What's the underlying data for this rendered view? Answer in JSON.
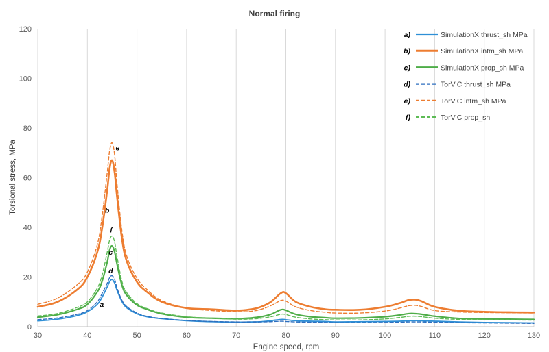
{
  "chart_data": {
    "type": "line",
    "title": "Normal firing",
    "xlabel": "Engine speed, rpm",
    "ylabel": "Torsional stress, MPa",
    "xlim": [
      30,
      130
    ],
    "ylim": [
      0,
      120
    ],
    "xticks": [
      30,
      40,
      50,
      60,
      70,
      80,
      90,
      100,
      110,
      120,
      130
    ],
    "yticks": [
      0,
      20,
      40,
      60,
      80,
      100,
      120
    ],
    "grid": "vertical",
    "legend_position": "top-right",
    "x": [
      30,
      34,
      38,
      40,
      42,
      43,
      44,
      44.5,
      45,
      45.5,
      46,
      47,
      48,
      50,
      52,
      55,
      60,
      65,
      70,
      73,
      75,
      77,
      79,
      80,
      82,
      85,
      88,
      90,
      95,
      100,
      103,
      105,
      107,
      110,
      115,
      120,
      125,
      130
    ],
    "series": [
      {
        "letter": "a)",
        "name": "SimulationX thrust_sh MPa",
        "color": "#2E8FD6",
        "dash": "solid",
        "width": 1.8,
        "values": [
          2.3,
          3.0,
          4.5,
          6.0,
          9.0,
          12.0,
          16.0,
          18.2,
          19.0,
          17.5,
          14.5,
          10.0,
          7.5,
          5.2,
          4.0,
          3.2,
          2.4,
          2.0,
          1.8,
          1.9,
          2.0,
          2.4,
          2.9,
          2.8,
          2.4,
          2.2,
          2.1,
          1.9,
          2.0,
          2.1,
          2.2,
          2.4,
          2.4,
          2.2,
          1.9,
          1.7,
          1.6,
          1.5
        ]
      },
      {
        "letter": "b)",
        "name": "SimulationX intm_sh MPa",
        "color": "#ED7D31",
        "dash": "solid",
        "width": 2.6,
        "values": [
          8.0,
          10.0,
          15.0,
          20.0,
          30.0,
          40.0,
          55.0,
          64.0,
          67.0,
          62.0,
          52.0,
          35.0,
          26.0,
          18.0,
          14.0,
          10.0,
          7.5,
          7.0,
          6.5,
          7.0,
          8.0,
          10.0,
          13.5,
          13.5,
          10.0,
          8.0,
          7.0,
          6.8,
          6.8,
          8.0,
          9.5,
          10.8,
          10.5,
          8.0,
          6.4,
          6.0,
          5.8,
          5.7
        ]
      },
      {
        "letter": "c)",
        "name": "SimulationX prop_sh MPa",
        "color": "#4EAD48",
        "dash": "solid",
        "width": 2.2,
        "values": [
          3.8,
          4.8,
          7.0,
          9.0,
          14.0,
          18.5,
          26.0,
          31.0,
          32.5,
          30.0,
          25.0,
          16.5,
          12.5,
          8.7,
          7.0,
          5.2,
          3.8,
          3.4,
          3.2,
          3.5,
          4.0,
          5.0,
          6.8,
          6.6,
          5.0,
          4.0,
          3.6,
          3.4,
          3.5,
          4.0,
          4.7,
          5.3,
          5.1,
          4.2,
          3.3,
          3.1,
          3.0,
          2.9
        ]
      },
      {
        "letter": "d)",
        "name": "TorViC thrust_sh MPa",
        "color": "#2E6FBF",
        "dash": "dashed",
        "width": 1.4,
        "values": [
          2.8,
          3.5,
          5.0,
          6.5,
          10.0,
          13.5,
          17.5,
          19.8,
          20.5,
          19.0,
          15.5,
          10.5,
          8.0,
          5.5,
          4.2,
          3.3,
          2.5,
          2.1,
          1.9,
          1.9,
          1.9,
          2.0,
          2.2,
          2.1,
          1.9,
          1.8,
          1.7,
          1.6,
          1.6,
          1.7,
          1.8,
          1.9,
          1.9,
          1.8,
          1.6,
          1.5,
          1.4,
          1.3
        ]
      },
      {
        "letter": "e)",
        "name": "TorViC intm_sh MPa",
        "color": "#ED7D31",
        "dash": "dashed",
        "width": 1.4,
        "values": [
          9.0,
          11.5,
          17.0,
          22.0,
          33.0,
          45.0,
          62.0,
          71.0,
          74.0,
          69.0,
          57.0,
          38.0,
          28.0,
          19.5,
          15.0,
          10.5,
          7.5,
          6.5,
          6.0,
          6.2,
          7.0,
          8.5,
          10.5,
          10.3,
          8.0,
          6.5,
          5.8,
          5.5,
          5.5,
          6.3,
          7.5,
          8.5,
          8.3,
          6.5,
          5.9,
          5.7,
          5.6,
          5.5
        ]
      },
      {
        "letter": "f)",
        "name": "TorViC prop_sh",
        "color": "#5DBB55",
        "dash": "dashed",
        "width": 1.4,
        "values": [
          4.3,
          5.3,
          7.8,
          10.0,
          15.5,
          21.0,
          30.0,
          35.0,
          36.5,
          34.0,
          28.0,
          18.0,
          13.5,
          9.3,
          7.3,
          5.5,
          4.0,
          3.4,
          3.0,
          3.1,
          3.4,
          4.0,
          5.0,
          4.9,
          3.8,
          3.1,
          2.8,
          2.7,
          2.7,
          3.1,
          3.7,
          4.2,
          4.1,
          3.4,
          2.9,
          2.8,
          2.7,
          2.6
        ]
      }
    ],
    "annotations": [
      {
        "text": "e",
        "x": 46.1,
        "y": 71.0
      },
      {
        "text": "b",
        "x": 44.0,
        "y": 46.0
      },
      {
        "text": "f",
        "x": 44.8,
        "y": 38.0
      },
      {
        "text": "c",
        "x": 44.7,
        "y": 29.0
      },
      {
        "text": "d",
        "x": 44.7,
        "y": 21.5
      },
      {
        "text": "a",
        "x": 42.9,
        "y": 8.0
      }
    ]
  }
}
